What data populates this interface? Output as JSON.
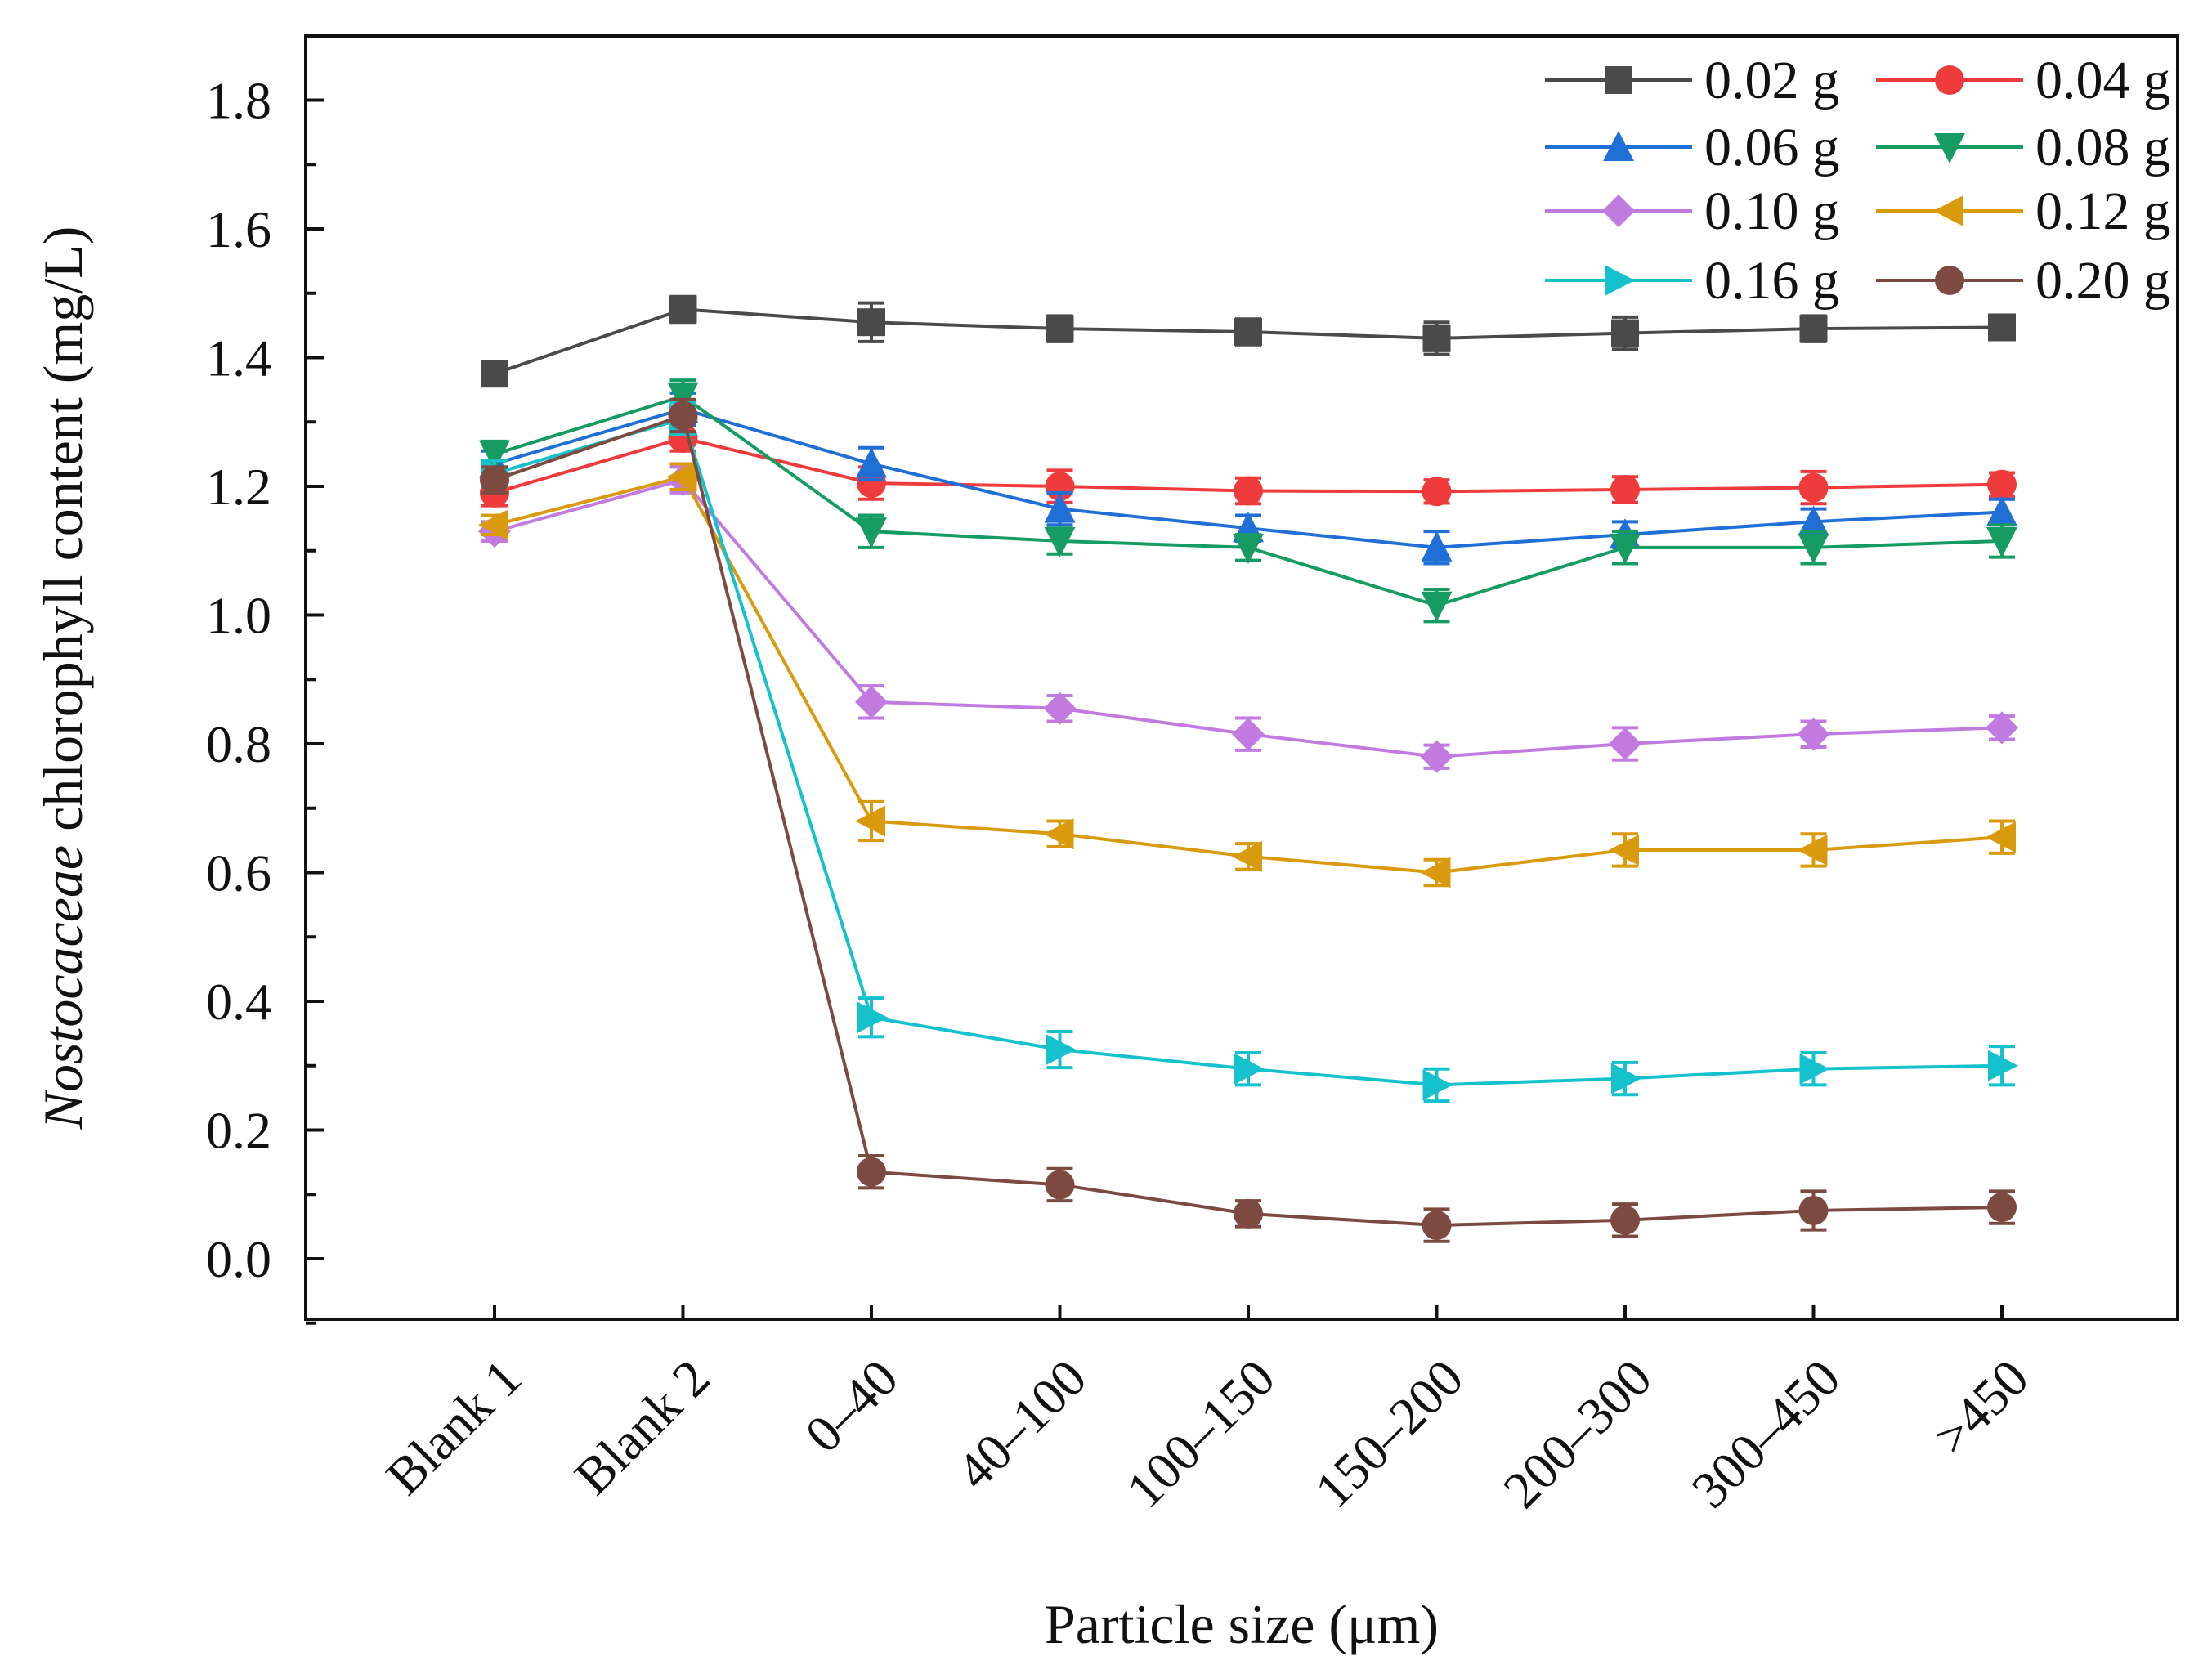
{
  "chart_data": {
    "type": "line",
    "title": "",
    "xlabel": "Particle size (μm)",
    "ylabel_italic": "Nostocaceae",
    "ylabel_rest": " chlorophyll content (mg/L)",
    "categories": [
      "Blank 1",
      "Blank 2",
      "0–40",
      "40–100",
      "100–150",
      "150–200",
      "200–300",
      "300–450",
      ">450"
    ],
    "ylim": [
      -0.1,
      1.9
    ],
    "yticks": [
      0.0,
      0.2,
      0.4,
      0.6,
      0.8,
      1.0,
      1.2,
      1.4,
      1.6,
      1.8
    ],
    "ytick_labels": [
      "0.0",
      "0.2",
      "0.4",
      "0.6",
      "0.8",
      "1.0",
      "1.2",
      "1.4",
      "1.6",
      "1.8"
    ],
    "legend_position": "top-right",
    "series": [
      {
        "name": "0.02 g",
        "color": "#4a4a4a",
        "marker": "square",
        "values": [
          1.375,
          1.475,
          1.455,
          1.445,
          1.44,
          1.43,
          1.438,
          1.445,
          1.447
        ],
        "errors": [
          0.015,
          0.02,
          0.03,
          0.02,
          0.02,
          0.025,
          0.025,
          0.02,
          0.018
        ]
      },
      {
        "name": "0.04 g",
        "color": "#ef3b3b",
        "marker": "circle",
        "values": [
          1.19,
          1.275,
          1.205,
          1.2,
          1.193,
          1.192,
          1.195,
          1.198,
          1.203
        ],
        "errors": [
          0.02,
          0.02,
          0.025,
          0.025,
          0.02,
          0.018,
          0.02,
          0.025,
          0.018
        ]
      },
      {
        "name": "0.06 g",
        "color": "#1f6fd6",
        "marker": "triangle-up",
        "values": [
          1.235,
          1.32,
          1.235,
          1.165,
          1.135,
          1.105,
          1.125,
          1.145,
          1.16
        ],
        "errors": [
          0.02,
          0.025,
          0.025,
          0.025,
          0.02,
          0.025,
          0.02,
          0.02,
          0.02
        ]
      },
      {
        "name": "0.08 g",
        "color": "#169b62",
        "marker": "triangle-down",
        "values": [
          1.25,
          1.34,
          1.13,
          1.115,
          1.105,
          1.015,
          1.105,
          1.105,
          1.115
        ],
        "errors": [
          0.02,
          0.025,
          0.025,
          0.02,
          0.02,
          0.025,
          0.025,
          0.025,
          0.025
        ]
      },
      {
        "name": "0.10 g",
        "color": "#c07ae0",
        "marker": "diamond",
        "values": [
          1.13,
          1.21,
          0.865,
          0.855,
          0.815,
          0.78,
          0.8,
          0.815,
          0.825
        ],
        "errors": [
          0.015,
          0.02,
          0.025,
          0.02,
          0.025,
          0.018,
          0.025,
          0.02,
          0.018
        ]
      },
      {
        "name": "0.12 g",
        "color": "#d99a0e",
        "marker": "triangle-left",
        "values": [
          1.14,
          1.215,
          0.68,
          0.66,
          0.625,
          0.6,
          0.635,
          0.635,
          0.655
        ],
        "errors": [
          0.015,
          0.02,
          0.03,
          0.02,
          0.02,
          0.02,
          0.025,
          0.025,
          0.025
        ]
      },
      {
        "name": "0.16 g",
        "color": "#15c1cc",
        "marker": "triangle-right",
        "values": [
          1.22,
          1.305,
          0.375,
          0.325,
          0.295,
          0.27,
          0.28,
          0.295,
          0.3
        ],
        "errors": [
          0.02,
          0.025,
          0.03,
          0.028,
          0.025,
          0.025,
          0.025,
          0.025,
          0.03
        ]
      },
      {
        "name": "0.20 g",
        "color": "#7d4a42",
        "marker": "circle",
        "values": [
          1.21,
          1.31,
          0.135,
          0.115,
          0.07,
          0.052,
          0.06,
          0.075,
          0.08
        ],
        "errors": [
          0.02,
          0.025,
          0.025,
          0.025,
          0.02,
          0.025,
          0.025,
          0.03,
          0.025
        ]
      }
    ]
  }
}
